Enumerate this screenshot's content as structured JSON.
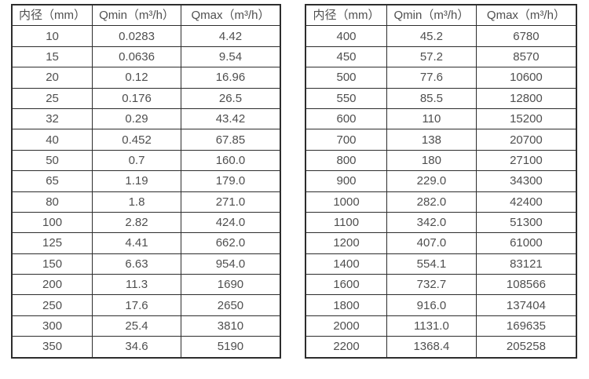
{
  "colors": {
    "border": "#2d2d2d",
    "text": "#4f4f4f",
    "background": "#ffffff"
  },
  "tables": [
    {
      "name": "small-diameters",
      "headers": [
        "内径（mm）",
        "Qmin（m³/h）",
        "Qmax（m³/h）"
      ],
      "rows": [
        [
          "10",
          "0.0283",
          "4.42"
        ],
        [
          "15",
          "0.0636",
          "9.54"
        ],
        [
          "20",
          "0.12",
          "16.96"
        ],
        [
          "25",
          "0.176",
          "26.5"
        ],
        [
          "32",
          "0.29",
          "43.42"
        ],
        [
          "40",
          "0.452",
          "67.85"
        ],
        [
          "50",
          "0.7",
          "160.0"
        ],
        [
          "65",
          "1.19",
          "179.0"
        ],
        [
          "80",
          "1.8",
          "271.0"
        ],
        [
          "100",
          "2.82",
          "424.0"
        ],
        [
          "125",
          "4.41",
          "662.0"
        ],
        [
          "150",
          "6.63",
          "954.0"
        ],
        [
          "200",
          "11.3",
          "1690"
        ],
        [
          "250",
          "17.6",
          "2650"
        ],
        [
          "300",
          "25.4",
          "3810"
        ],
        [
          "350",
          "34.6",
          "5190"
        ]
      ]
    },
    {
      "name": "large-diameters",
      "headers": [
        "内径（mm）",
        "Qmin（m³/h）",
        "Qmax（m³/h）"
      ],
      "rows": [
        [
          "400",
          "45.2",
          "6780"
        ],
        [
          "450",
          "57.2",
          "8570"
        ],
        [
          "500",
          "77.6",
          "10600"
        ],
        [
          "550",
          "85.5",
          "12800"
        ],
        [
          "600",
          "110",
          "15200"
        ],
        [
          "700",
          "138",
          "20700"
        ],
        [
          "800",
          "180",
          "27100"
        ],
        [
          "900",
          "229.0",
          "34300"
        ],
        [
          "1000",
          "282.0",
          "42400"
        ],
        [
          "1100",
          "342.0",
          "51300"
        ],
        [
          "1200",
          "407.0",
          "61000"
        ],
        [
          "1400",
          "554.1",
          "83121"
        ],
        [
          "1600",
          "732.7",
          "108566"
        ],
        [
          "1800",
          "916.0",
          "137404"
        ],
        [
          "2000",
          "1131.0",
          "169635"
        ],
        [
          "2200",
          "1368.4",
          "205258"
        ]
      ]
    }
  ]
}
